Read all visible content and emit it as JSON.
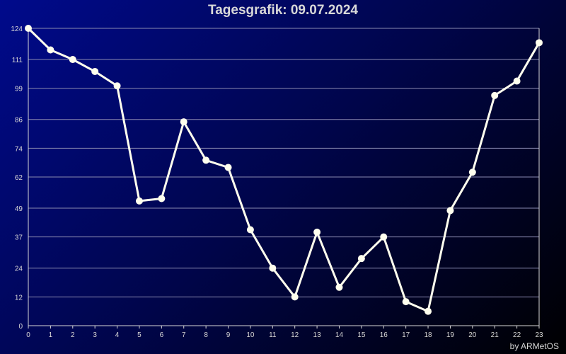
{
  "chart_data": {
    "type": "line",
    "title": "Tagesgrafik: 09.07.2024",
    "credit": "by ARMetOS",
    "x": [
      0,
      1,
      2,
      3,
      4,
      5,
      6,
      7,
      8,
      9,
      10,
      11,
      12,
      13,
      14,
      15,
      16,
      17,
      18,
      19,
      20,
      21,
      22,
      23
    ],
    "values": [
      124,
      115,
      111,
      106,
      100,
      52,
      53,
      85,
      69,
      66,
      40,
      24,
      12,
      39,
      16,
      28,
      37,
      10,
      6,
      48,
      64,
      96,
      102,
      118
    ],
    "xticks": [
      "0",
      "1",
      "2",
      "3",
      "4",
      "5",
      "6",
      "7",
      "8",
      "9",
      "10",
      "11",
      "12",
      "13",
      "14",
      "15",
      "16",
      "17",
      "18",
      "19",
      "20",
      "21",
      "22",
      "23"
    ],
    "yticks": [
      0,
      12,
      24,
      37,
      49,
      62,
      74,
      86,
      99,
      111,
      124
    ],
    "ylim": [
      0,
      124
    ],
    "grid": true,
    "line_color": "#ffffee",
    "grid_color": "#8a8ab0"
  }
}
